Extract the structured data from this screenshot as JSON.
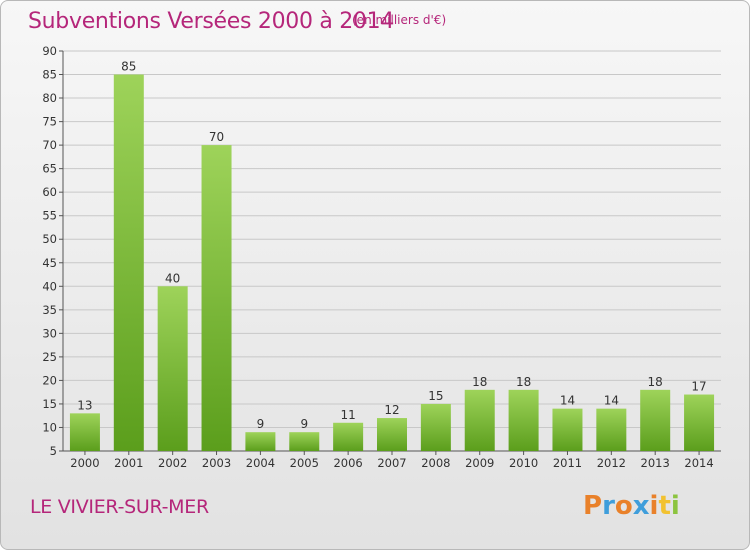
{
  "header": {
    "title": "Subventions Versées 2000 à 2014",
    "unit": "(en milliers d'€)"
  },
  "footer": {
    "place": "LE VIVIER-SUR-MER",
    "brand": [
      "P",
      "r",
      "o",
      "x",
      "i",
      "t",
      "i"
    ],
    "brand_colors": [
      "#e9812a",
      "#3f9edb",
      "#e9812a",
      "#3f9edb",
      "#e9812a",
      "#f2c230",
      "#8cc43f"
    ]
  },
  "colors": {
    "title": "#b5267a",
    "bar_light": "#9ed35a",
    "bar_dark": "#5b9e1c",
    "grid": "#c8c8c8",
    "axis": "#555555"
  },
  "chart_data": {
    "type": "bar",
    "categories": [
      "2000",
      "2001",
      "2002",
      "2003",
      "2004",
      "2005",
      "2006",
      "2007",
      "2008",
      "2009",
      "2010",
      "2011",
      "2012",
      "2013",
      "2014"
    ],
    "values": [
      13,
      85,
      40,
      70,
      9,
      9,
      11,
      12,
      15,
      18,
      18,
      14,
      14,
      18,
      17
    ],
    "yticks": [
      5,
      10,
      15,
      20,
      25,
      30,
      35,
      40,
      45,
      50,
      55,
      60,
      65,
      70,
      75,
      80,
      85,
      90
    ],
    "ylim": [
      5,
      90
    ],
    "grid": true,
    "title": "Subventions Versées 2000 à 2014",
    "xlabel": "",
    "ylabel": ""
  }
}
